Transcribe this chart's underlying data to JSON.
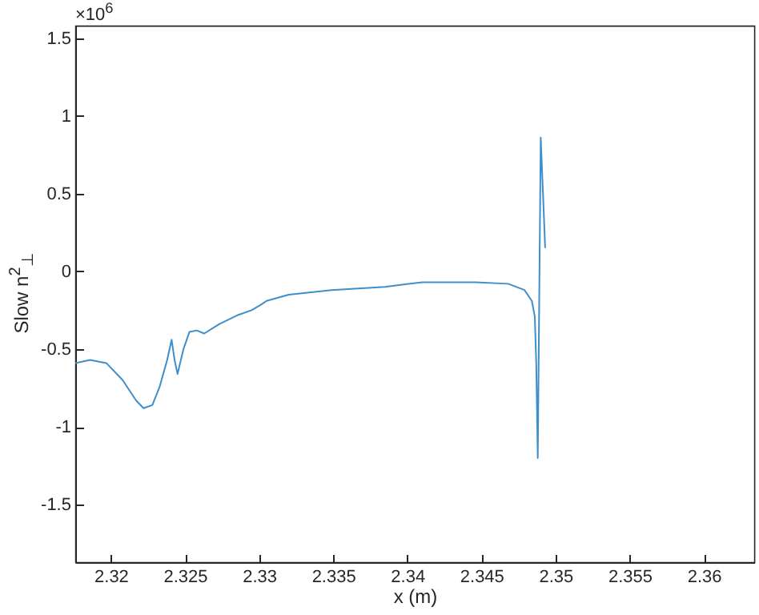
{
  "chart_data": {
    "type": "line",
    "xlabel": "x (m)",
    "ylabel": "Slow n$^{2}$$_{⊥}$",
    "annotations": [
      "×10$^{6}$"
    ],
    "xlim": [
      2.3176,
      2.3634
    ],
    "xticks": [
      2.32,
      2.325,
      2.33,
      2.335,
      2.34,
      2.345,
      2.35,
      2.355,
      2.36
    ],
    "ylim": [
      -1.87,
      1.58
    ],
    "yticks": [
      -1.5,
      -1,
      -0.5,
      0,
      0.5,
      1,
      1.5
    ],
    "grid": false,
    "series": [
      {
        "color": "#3d8fcc",
        "x": [
          2.3176,
          2.3186,
          2.3197,
          2.3208,
          2.3217,
          2.3222,
          2.3228,
          2.3233,
          2.3238,
          2.3241,
          2.3243,
          2.3245,
          2.3249,
          2.3253,
          2.3258,
          2.3263,
          2.3273,
          2.3286,
          2.3295,
          2.3302,
          2.3305,
          2.332,
          2.3349,
          2.3385,
          2.341,
          2.3446,
          2.3468,
          2.3479,
          2.3484,
          2.3486,
          2.3487,
          2.3488,
          2.349,
          2.3493
        ],
        "values": [
          -0.59,
          -0.57,
          -0.59,
          -0.7,
          -0.83,
          -0.88,
          -0.86,
          -0.74,
          -0.57,
          -0.44,
          -0.57,
          -0.66,
          -0.5,
          -0.39,
          -0.38,
          -0.4,
          -0.34,
          -0.28,
          -0.25,
          -0.21,
          -0.19,
          -0.15,
          -0.12,
          -0.1,
          -0.07,
          -0.07,
          -0.08,
          -0.12,
          -0.19,
          -0.29,
          -0.6,
          -1.2,
          0.86,
          0.15
        ]
      }
    ]
  }
}
